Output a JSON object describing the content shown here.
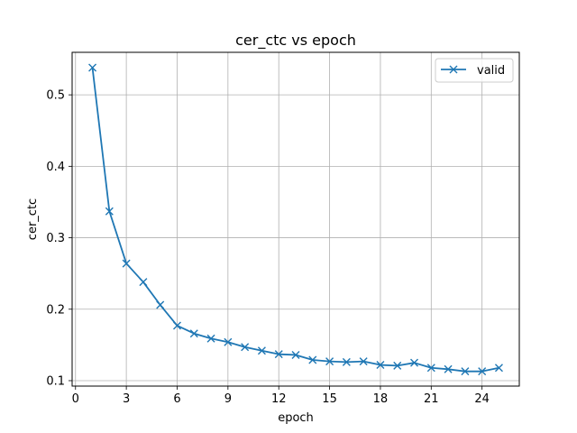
{
  "chart_data": {
    "type": "line",
    "title": "cer_ctc vs epoch",
    "xlabel": "epoch",
    "ylabel": "cer_ctc",
    "xlim": [
      -0.2,
      26.2
    ],
    "ylim": [
      0.0924,
      0.5595
    ],
    "xticks": [
      0,
      3,
      6,
      9,
      12,
      15,
      18,
      21,
      24
    ],
    "yticks": [
      0.1,
      0.2,
      0.3,
      0.4,
      0.5
    ],
    "grid": true,
    "legend_position": "top-right",
    "series": [
      {
        "name": "valid",
        "color": "#1f77b4",
        "marker": "x",
        "x": [
          1,
          2,
          3,
          4,
          5,
          6,
          7,
          8,
          9,
          10,
          11,
          12,
          13,
          14,
          15,
          16,
          17,
          18,
          19,
          20,
          21,
          22,
          23,
          24,
          25
        ],
        "y": [
          0.538,
          0.337,
          0.264,
          0.238,
          0.206,
          0.177,
          0.166,
          0.159,
          0.154,
          0.147,
          0.142,
          0.137,
          0.136,
          0.129,
          0.127,
          0.126,
          0.127,
          0.122,
          0.121,
          0.125,
          0.118,
          0.116,
          0.113,
          0.113,
          0.118
        ]
      }
    ]
  }
}
